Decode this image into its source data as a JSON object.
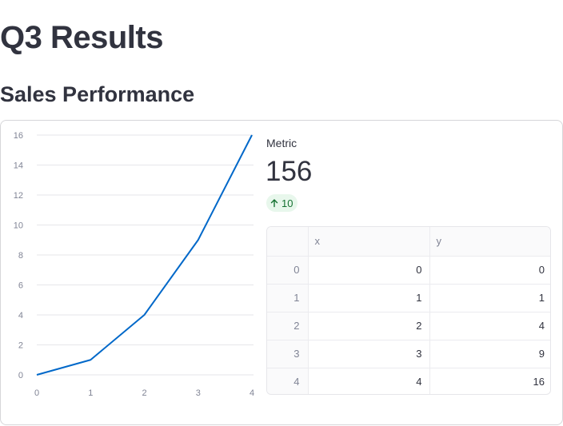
{
  "page": {
    "title": "Q3 Results",
    "section_title": "Sales Performance"
  },
  "metric": {
    "label": "Metric",
    "value": "156",
    "delta": "10",
    "delta_direction": "up",
    "delta_color": "#177233",
    "delta_bg": "#e8f7ec",
    "delta_icon": "arrow-up-icon"
  },
  "table": {
    "columns": [
      "",
      "x",
      "y"
    ],
    "rows": [
      {
        "index": "0",
        "x": "0",
        "y": "0"
      },
      {
        "index": "1",
        "x": "1",
        "y": "1"
      },
      {
        "index": "2",
        "x": "2",
        "y": "4"
      },
      {
        "index": "3",
        "x": "3",
        "y": "9"
      },
      {
        "index": "4",
        "x": "4",
        "y": "16"
      }
    ]
  },
  "chart_data": {
    "type": "line",
    "x": [
      0,
      1,
      2,
      3,
      4
    ],
    "series": [
      {
        "values": [
          0,
          1,
          4,
          9,
          16
        ],
        "color": "#0068c9"
      }
    ],
    "xticks": [
      0,
      1,
      2,
      3,
      4
    ],
    "yticks": [
      0,
      2,
      4,
      6,
      8,
      10,
      12,
      14,
      16
    ],
    "xlim": [
      0,
      4
    ],
    "ylim": [
      0,
      16
    ],
    "grid": true,
    "title": "",
    "xlabel": "",
    "ylabel": ""
  }
}
